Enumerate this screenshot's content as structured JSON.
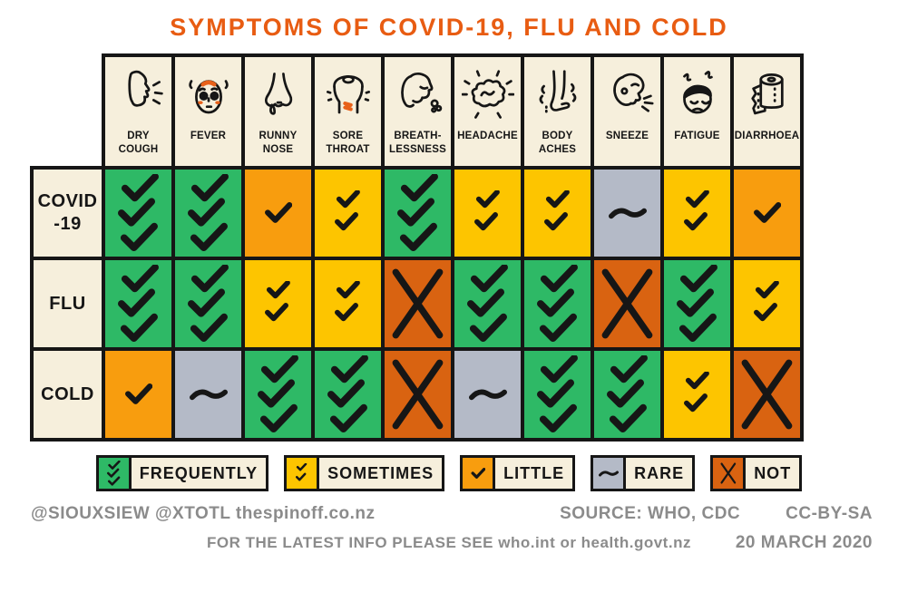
{
  "title": "SYMPTOMS OF COVID-19, FLU AND COLD",
  "colors": {
    "title": "#e85c12",
    "panel": "#f6efdc",
    "grid_line": "#161616",
    "accent_orange": "#e8611a",
    "frequently": "#2eb966",
    "sometimes": "#fdc500",
    "little": "#f89d0e",
    "rare": "#b4bac7",
    "not": "#d96311",
    "footer_text": "#8b8b8b"
  },
  "columns": [
    {
      "label": "DRY\nCOUGH",
      "icon": "dry-cough-icon"
    },
    {
      "label": "FEVER",
      "icon": "fever-icon"
    },
    {
      "label": "RUNNY\nNOSE",
      "icon": "runny-nose-icon"
    },
    {
      "label": "SORE\nTHROAT",
      "icon": "sore-throat-icon"
    },
    {
      "label": "BREATH-\nLESSNESS",
      "icon": "breathlessness-icon"
    },
    {
      "label": "HEADACHE",
      "icon": "headache-icon"
    },
    {
      "label": "BODY\nACHES",
      "icon": "body-aches-icon"
    },
    {
      "label": "SNEEZE",
      "icon": "sneeze-icon"
    },
    {
      "label": "FATIGUE",
      "icon": "fatigue-icon"
    },
    {
      "label": "DIARRHOEA",
      "icon": "diarrhoea-icon"
    }
  ],
  "rows": [
    {
      "label": "COVID\n-19",
      "cells": [
        "frequently",
        "frequently",
        "little",
        "sometimes",
        "frequently",
        "sometimes",
        "sometimes",
        "rare",
        "sometimes",
        "little"
      ]
    },
    {
      "label": "FLU",
      "cells": [
        "frequently",
        "frequently",
        "sometimes",
        "sometimes",
        "not",
        "frequently",
        "frequently",
        "not",
        "frequently",
        "sometimes"
      ]
    },
    {
      "label": "COLD",
      "cells": [
        "little",
        "rare",
        "frequently",
        "frequently",
        "not",
        "rare",
        "frequently",
        "frequently",
        "sometimes",
        "not"
      ]
    }
  ],
  "legend": [
    {
      "key": "frequently",
      "label": "FREQUENTLY"
    },
    {
      "key": "sometimes",
      "label": "SOMETIMES"
    },
    {
      "key": "little",
      "label": "LITTLE"
    },
    {
      "key": "rare",
      "label": "RARE"
    },
    {
      "key": "not",
      "label": "NOT"
    }
  ],
  "footer": {
    "credits": "@SIOUXSIEW @XTOTL thespinoff.co.nz",
    "source": "SOURCE: WHO, CDC",
    "license": "CC-BY-SA",
    "info": "FOR THE LATEST INFO PLEASE SEE who.int or health.govt.nz",
    "date": "20 MARCH 2020"
  },
  "chart_data": {
    "type": "heatmap",
    "title": "SYMPTOMS OF COVID-19, FLU AND COLD",
    "categories": [
      "DRY COUGH",
      "FEVER",
      "RUNNY NOSE",
      "SORE THROAT",
      "BREATHLESSNESS",
      "HEADACHE",
      "BODY ACHES",
      "SNEEZE",
      "FATIGUE",
      "DIARRHOEA"
    ],
    "rows": [
      "COVID-19",
      "FLU",
      "COLD"
    ],
    "scale": [
      "NOT",
      "RARE",
      "LITTLE",
      "SOMETIMES",
      "FREQUENTLY"
    ],
    "values": [
      [
        "FREQUENTLY",
        "FREQUENTLY",
        "LITTLE",
        "SOMETIMES",
        "FREQUENTLY",
        "SOMETIMES",
        "SOMETIMES",
        "RARE",
        "SOMETIMES",
        "LITTLE"
      ],
      [
        "FREQUENTLY",
        "FREQUENTLY",
        "SOMETIMES",
        "SOMETIMES",
        "NOT",
        "FREQUENTLY",
        "FREQUENTLY",
        "NOT",
        "FREQUENTLY",
        "SOMETIMES"
      ],
      [
        "LITTLE",
        "RARE",
        "FREQUENTLY",
        "FREQUENTLY",
        "NOT",
        "RARE",
        "FREQUENTLY",
        "FREQUENTLY",
        "SOMETIMES",
        "NOT"
      ]
    ],
    "legend_position": "bottom",
    "source": "WHO, CDC",
    "date": "20 MARCH 2020"
  }
}
